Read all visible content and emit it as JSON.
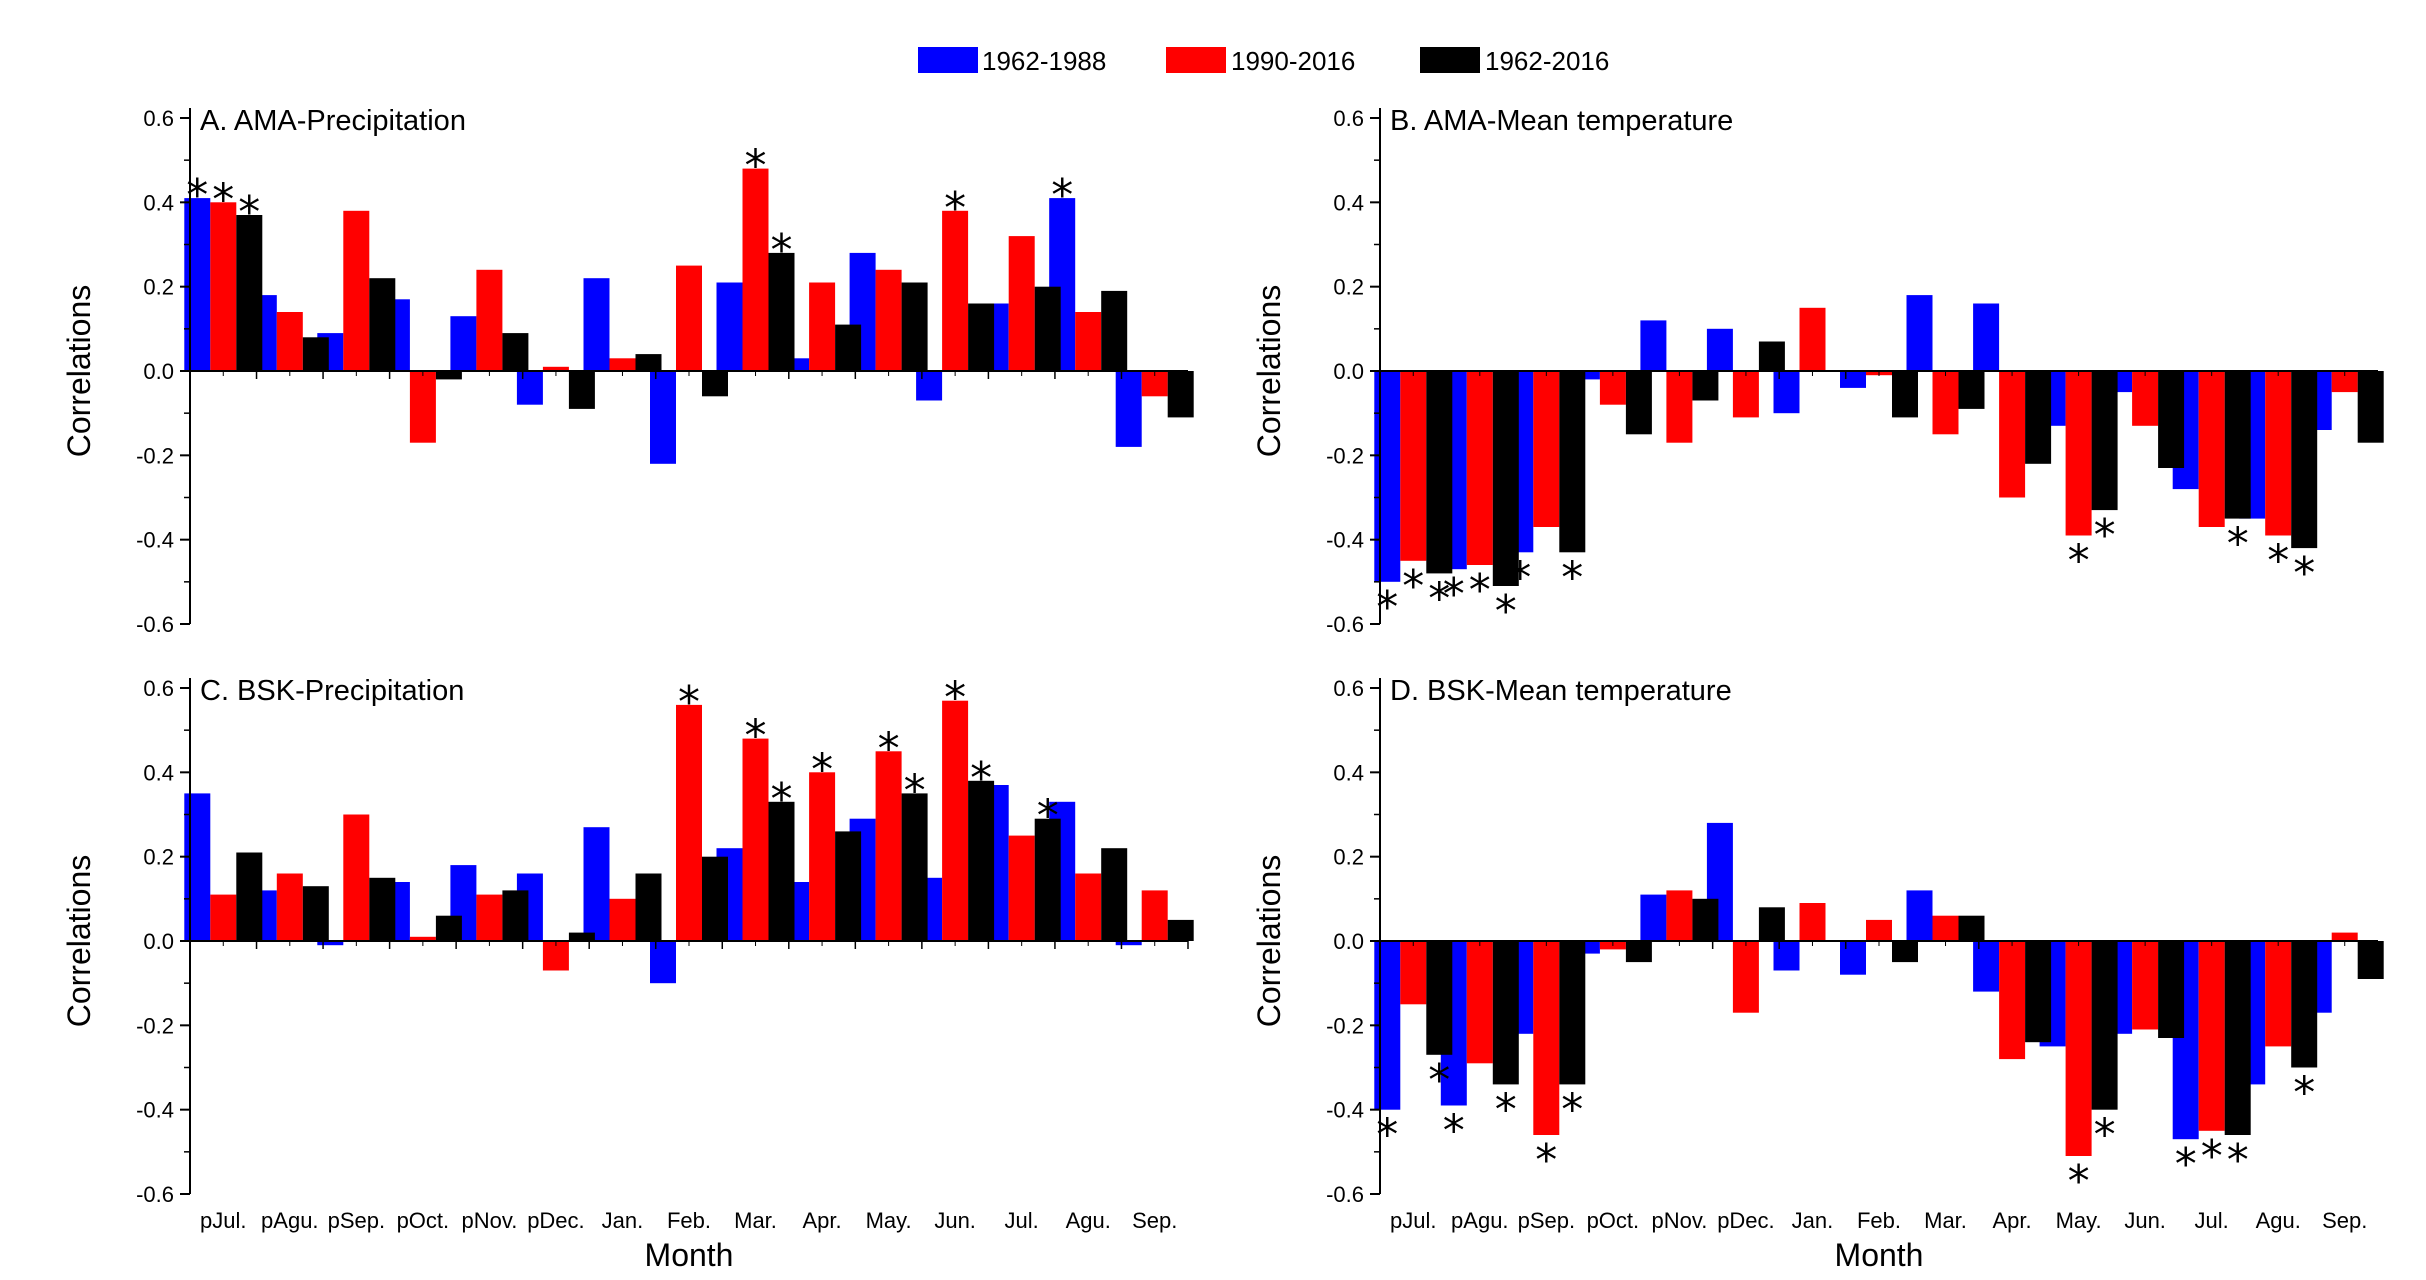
{
  "legend": [
    {
      "label": "1962-1988",
      "color": "#0000ff"
    },
    {
      "label": "1990-2016",
      "color": "#ff0000"
    },
    {
      "label": "1962-2016",
      "color": "#000000"
    }
  ],
  "chart_data": [
    {
      "type": "bar",
      "title": "A. AMA-Precipitation",
      "xlabel": "Month",
      "ylabel": "Correlations",
      "ylim": [
        -0.6,
        0.6
      ],
      "yticks": [
        "-0.6",
        "-0.4",
        "-0.2",
        "0.0",
        "0.2",
        "0.4",
        "0.6"
      ],
      "categories": [
        "pJul.",
        "pAgu.",
        "pSep.",
        "pOct.",
        "pNov.",
        "pDec.",
        "Jan.",
        "Feb.",
        "Mar.",
        "Apr.",
        "May.",
        "Jun.",
        "Jul.",
        "Agu.",
        "Sep."
      ],
      "series": [
        {
          "name": "1962-1988",
          "values": [
            0.41,
            0.18,
            0.09,
            0.17,
            0.13,
            -0.08,
            0.22,
            -0.22,
            0.21,
            0.03,
            0.28,
            -0.07,
            0.16,
            0.41,
            -0.18
          ],
          "sig": [
            1,
            0,
            0,
            0,
            0,
            0,
            0,
            0,
            0,
            0,
            0,
            0,
            0,
            1,
            0
          ]
        },
        {
          "name": "1990-2016",
          "values": [
            0.4,
            0.14,
            0.38,
            -0.17,
            0.24,
            0.01,
            0.03,
            0.25,
            0.48,
            0.21,
            0.24,
            0.38,
            0.32,
            0.14,
            -0.06
          ],
          "sig": [
            1,
            0,
            0,
            0,
            0,
            0,
            0,
            0,
            1,
            0,
            0,
            1,
            0,
            0,
            0
          ]
        },
        {
          "name": "1962-2016",
          "values": [
            0.37,
            0.08,
            0.22,
            -0.02,
            0.09,
            -0.09,
            0.04,
            -0.06,
            0.28,
            0.11,
            0.21,
            0.16,
            0.2,
            0.19,
            -0.11
          ],
          "sig": [
            1,
            0,
            0,
            0,
            0,
            0,
            0,
            0,
            1,
            0,
            0,
            0,
            0,
            0,
            0
          ]
        }
      ]
    },
    {
      "type": "bar",
      "title": "B. AMA-Mean temperature",
      "xlabel": "Month",
      "ylabel": "Correlations",
      "ylim": [
        -0.6,
        0.6
      ],
      "yticks": [
        "-0.6",
        "-0.4",
        "-0.2",
        "0.0",
        "0.2",
        "0.4",
        "0.6"
      ],
      "categories": [
        "pJul.",
        "pAgu.",
        "pSep.",
        "pOct.",
        "pNov.",
        "pDec.",
        "Jan.",
        "Feb.",
        "Mar.",
        "Apr.",
        "May.",
        "Jun.",
        "Jul.",
        "Agu.",
        "Sep."
      ],
      "series": [
        {
          "name": "1962-1988",
          "values": [
            -0.5,
            -0.47,
            -0.43,
            -0.02,
            0.12,
            0.1,
            -0.1,
            -0.04,
            0.18,
            0.16,
            -0.13,
            -0.05,
            -0.28,
            -0.35,
            -0.14
          ],
          "sig": [
            1,
            1,
            1,
            0,
            0,
            0,
            0,
            0,
            0,
            0,
            0,
            0,
            0,
            0,
            0
          ]
        },
        {
          "name": "1990-2016",
          "values": [
            -0.45,
            -0.46,
            -0.37,
            -0.08,
            -0.17,
            -0.11,
            0.15,
            -0.01,
            -0.15,
            -0.3,
            -0.39,
            -0.13,
            -0.37,
            -0.39,
            -0.05
          ],
          "sig": [
            1,
            1,
            0,
            0,
            0,
            0,
            0,
            0,
            0,
            0,
            1,
            0,
            0,
            1,
            0
          ]
        },
        {
          "name": "1962-2016",
          "values": [
            -0.48,
            -0.51,
            -0.43,
            -0.15,
            -0.07,
            0.07,
            0.0,
            -0.11,
            -0.09,
            -0.22,
            -0.33,
            -0.23,
            -0.35,
            -0.42,
            -0.17
          ],
          "sig": [
            1,
            1,
            1,
            0,
            0,
            0,
            0,
            0,
            0,
            0,
            1,
            0,
            1,
            1,
            0
          ]
        }
      ]
    },
    {
      "type": "bar",
      "title": "C. BSK-Precipitation",
      "xlabel": "Month",
      "ylabel": "Correlations",
      "ylim": [
        -0.6,
        0.6
      ],
      "yticks": [
        "-0.6",
        "-0.4",
        "-0.2",
        "0.0",
        "0.2",
        "0.4",
        "0.6"
      ],
      "categories": [
        "pJul.",
        "pAgu.",
        "pSep.",
        "pOct.",
        "pNov.",
        "pDec.",
        "Jan.",
        "Feb.",
        "Mar.",
        "Apr.",
        "May.",
        "Jun.",
        "Jul.",
        "Agu.",
        "Sep."
      ],
      "series": [
        {
          "name": "1962-1988",
          "values": [
            0.35,
            0.12,
            -0.01,
            0.14,
            0.18,
            0.16,
            0.27,
            -0.1,
            0.22,
            0.14,
            0.29,
            0.15,
            0.37,
            0.33,
            -0.01
          ],
          "sig": [
            0,
            0,
            0,
            0,
            0,
            0,
            0,
            0,
            0,
            0,
            0,
            0,
            0,
            0,
            0
          ]
        },
        {
          "name": "1990-2016",
          "values": [
            0.11,
            0.16,
            0.3,
            0.01,
            0.11,
            -0.07,
            0.1,
            0.56,
            0.48,
            0.4,
            0.45,
            0.57,
            0.25,
            0.16,
            0.12
          ],
          "sig": [
            0,
            0,
            0,
            0,
            0,
            0,
            0,
            1,
            1,
            1,
            1,
            1,
            0,
            0,
            0
          ]
        },
        {
          "name": "1962-2016",
          "values": [
            0.21,
            0.13,
            0.15,
            0.06,
            0.12,
            0.02,
            0.16,
            0.2,
            0.33,
            0.26,
            0.35,
            0.38,
            0.29,
            0.22,
            0.05
          ],
          "sig": [
            0,
            0,
            0,
            0,
            0,
            0,
            0,
            0,
            1,
            0,
            1,
            1,
            1,
            0,
            0
          ]
        }
      ]
    },
    {
      "type": "bar",
      "title": "D. BSK-Mean temperature",
      "xlabel": "Month",
      "ylabel": "Correlations",
      "ylim": [
        -0.6,
        0.6
      ],
      "yticks": [
        "-0.6",
        "-0.4",
        "-0.2",
        "0.0",
        "0.2",
        "0.4",
        "0.6"
      ],
      "categories": [
        "pJul.",
        "pAgu.",
        "pSep.",
        "pOct.",
        "pNov.",
        "pDec.",
        "Jan.",
        "Feb.",
        "Mar.",
        "Apr.",
        "May.",
        "Jun.",
        "Jul.",
        "Agu.",
        "Sep."
      ],
      "series": [
        {
          "name": "1962-1988",
          "values": [
            -0.4,
            -0.39,
            -0.22,
            -0.03,
            0.11,
            0.28,
            -0.07,
            -0.08,
            0.12,
            -0.12,
            -0.25,
            -0.22,
            -0.47,
            -0.34,
            -0.17
          ],
          "sig": [
            1,
            1,
            0,
            0,
            0,
            0,
            0,
            0,
            0,
            0,
            0,
            0,
            1,
            0,
            0
          ]
        },
        {
          "name": "1990-2016",
          "values": [
            -0.15,
            -0.29,
            -0.46,
            -0.02,
            0.12,
            -0.17,
            0.09,
            0.05,
            0.06,
            -0.28,
            -0.51,
            -0.21,
            -0.45,
            -0.25,
            0.02
          ],
          "sig": [
            0,
            0,
            1,
            0,
            0,
            0,
            0,
            0,
            0,
            0,
            1,
            0,
            1,
            0,
            0
          ]
        },
        {
          "name": "1962-2016",
          "values": [
            -0.27,
            -0.34,
            -0.34,
            -0.05,
            0.1,
            0.08,
            0.0,
            -0.05,
            0.06,
            -0.24,
            -0.4,
            -0.23,
            -0.46,
            -0.3,
            -0.09
          ],
          "sig": [
            1,
            1,
            1,
            0,
            0,
            0,
            0,
            0,
            0,
            0,
            1,
            0,
            1,
            1,
            0
          ]
        }
      ]
    }
  ]
}
